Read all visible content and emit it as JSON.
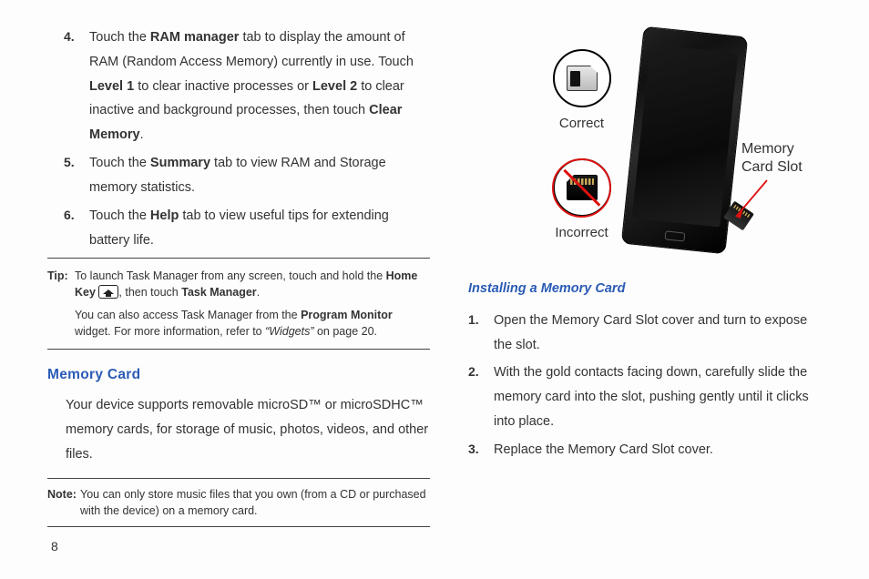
{
  "left": {
    "items": [
      {
        "num": "4.",
        "text_html": "Touch the <b>RAM manager</b> tab to display the amount of RAM (Random Access Memory) currently in use. Touch <b>Level 1</b> to clear inactive processes or <b>Level 2</b> to clear inactive and background processes, then touch <b>Clear Memory</b>."
      },
      {
        "num": "5.",
        "text_html": "Touch the <b>Summary</b> tab to view RAM and Storage memory statistics."
      },
      {
        "num": "6.",
        "text_html": "Touch the <b>Help</b> tab to view useful tips for extending battery life."
      }
    ],
    "tip": {
      "label": "Tip:",
      "p1_html": "To launch Task Manager from any screen, touch and hold the <b>Home Key</b> [HOME], then touch <b>Task Manager</b>.",
      "p2_html": "You can also access Task Manager from the <b>Program Monitor</b> widget. For more information, refer to <i>“Widgets”</i>  on page 20."
    },
    "section": {
      "heading": "Memory Card",
      "body": "Your device supports removable microSD™ or microSDHC™ memory cards, for storage of music, photos, videos, and other files."
    },
    "note": {
      "label": "Note:",
      "text": "You can only store music files that you own (from a CD or purchased with the device) on a memory card."
    }
  },
  "right": {
    "illus": {
      "correct_label": "Correct",
      "incorrect_label": "Incorrect",
      "slot_label_l1": "Memory",
      "slot_label_l2": "Card Slot",
      "pointer_color": "#d11"
    },
    "sub_heading": "Installing a Memory Card",
    "steps": [
      {
        "num": "1.",
        "text": "Open the Memory Card Slot cover and turn to expose the slot."
      },
      {
        "num": "2.",
        "text": "With the gold contacts facing down, carefully slide the memory card into the slot, pushing gently until it clicks into place."
      },
      {
        "num": "3.",
        "text": "Replace the Memory Card Slot cover."
      }
    ]
  },
  "page_number": "8"
}
